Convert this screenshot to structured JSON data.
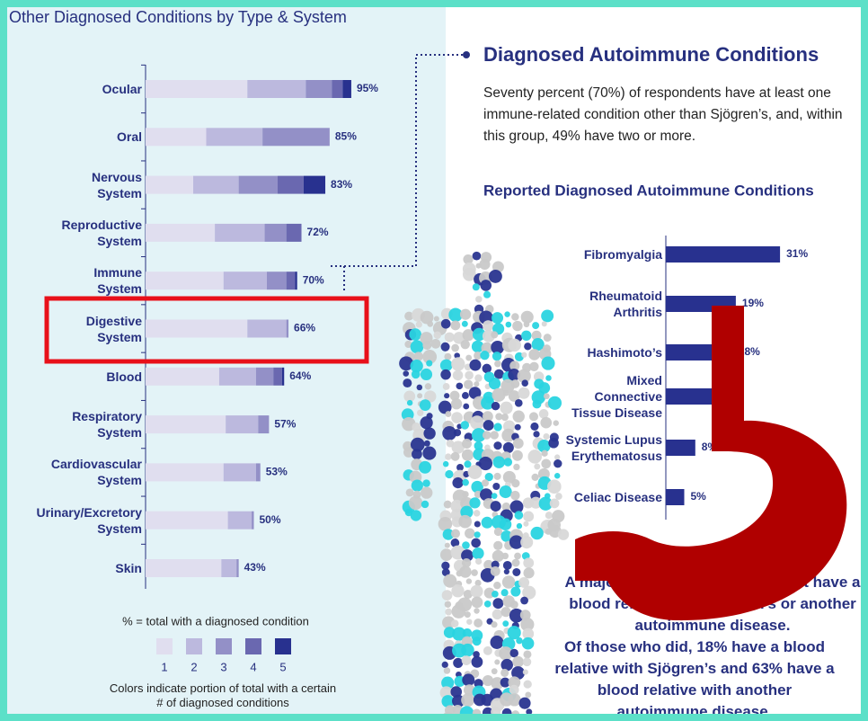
{
  "chart_data": [
    {
      "type": "stacked-barh",
      "title": "Other Diagnosed Conditions by Type & System",
      "categories": [
        "Ocular",
        "Oral",
        "Nervous\nSystem",
        "Reproductive\nSystem",
        "Immune\nSystem",
        "Digestive\nSystem",
        "Blood",
        "Respiratory\nSystem",
        "Cardiovascular\nSystem",
        "Urinary/Excretory\nSystem",
        "Skin"
      ],
      "series": [
        {
          "name": "1",
          "color": "#e0deef",
          "values": [
            47,
            28,
            22,
            32,
            36,
            47,
            34,
            37,
            36,
            38,
            35
          ]
        },
        {
          "name": "2",
          "color": "#bcb9de",
          "values": [
            27,
            26,
            21,
            23,
            20,
            18,
            17,
            15,
            15,
            11,
            7
          ]
        },
        {
          "name": "3",
          "color": "#9390c7",
          "values": [
            12,
            31,
            18,
            10,
            9,
            1,
            8,
            5,
            2,
            1,
            1
          ]
        },
        {
          "name": "4",
          "color": "#6a68b0",
          "values": [
            5,
            0,
            12,
            7,
            4,
            0,
            4,
            0,
            0,
            0,
            0
          ]
        },
        {
          "name": "5",
          "color": "#28318f",
          "values": [
            4,
            0,
            10,
            0,
            1,
            0,
            1,
            0,
            0,
            0,
            0
          ]
        }
      ],
      "total_labels": [
        "95%",
        "85%",
        "83%",
        "72%",
        "70%",
        "66%",
        "64%",
        "57%",
        "53%",
        "50%",
        "43%"
      ],
      "xlim": [
        0,
        100
      ],
      "legend_title": "% = total with a diagnosed condition",
      "legend_note": "Colors indicate portion of total with a certain\n# of diagnosed conditions"
    },
    {
      "type": "barh",
      "title": "Reported Diagnosed Autoimmune Conditions",
      "categories": [
        "Fibromyalgia",
        "Rheumatoid\nArthritis",
        "Hashimoto’s",
        "Mixed\nConnective\nTissue Disease",
        "Systemic Lupus\nErythematosus",
        "Celiac Disease"
      ],
      "values": [
        31,
        19,
        18,
        13,
        8,
        5
      ],
      "value_labels": [
        "31%",
        "19%",
        "18%",
        "13%",
        "8%",
        "5%"
      ],
      "color": "#28318f",
      "xlim": [
        0,
        50
      ]
    }
  ],
  "panel": {
    "heading": "Diagnosed Autoimmune Conditions",
    "paragraph": "Seventy percent (70%) of respondents have at least one immune-related condition other than Sjögren’s, and, within this group, 49% have two or more.",
    "note_1": "A majority of respondents did not have a blood relative with Sjögren’s or another autoimmune disease.",
    "note_2": "Of those who did, 18% have a blood relative with Sjögren’s and 63% have a blood relative with another autoimmune disease."
  }
}
